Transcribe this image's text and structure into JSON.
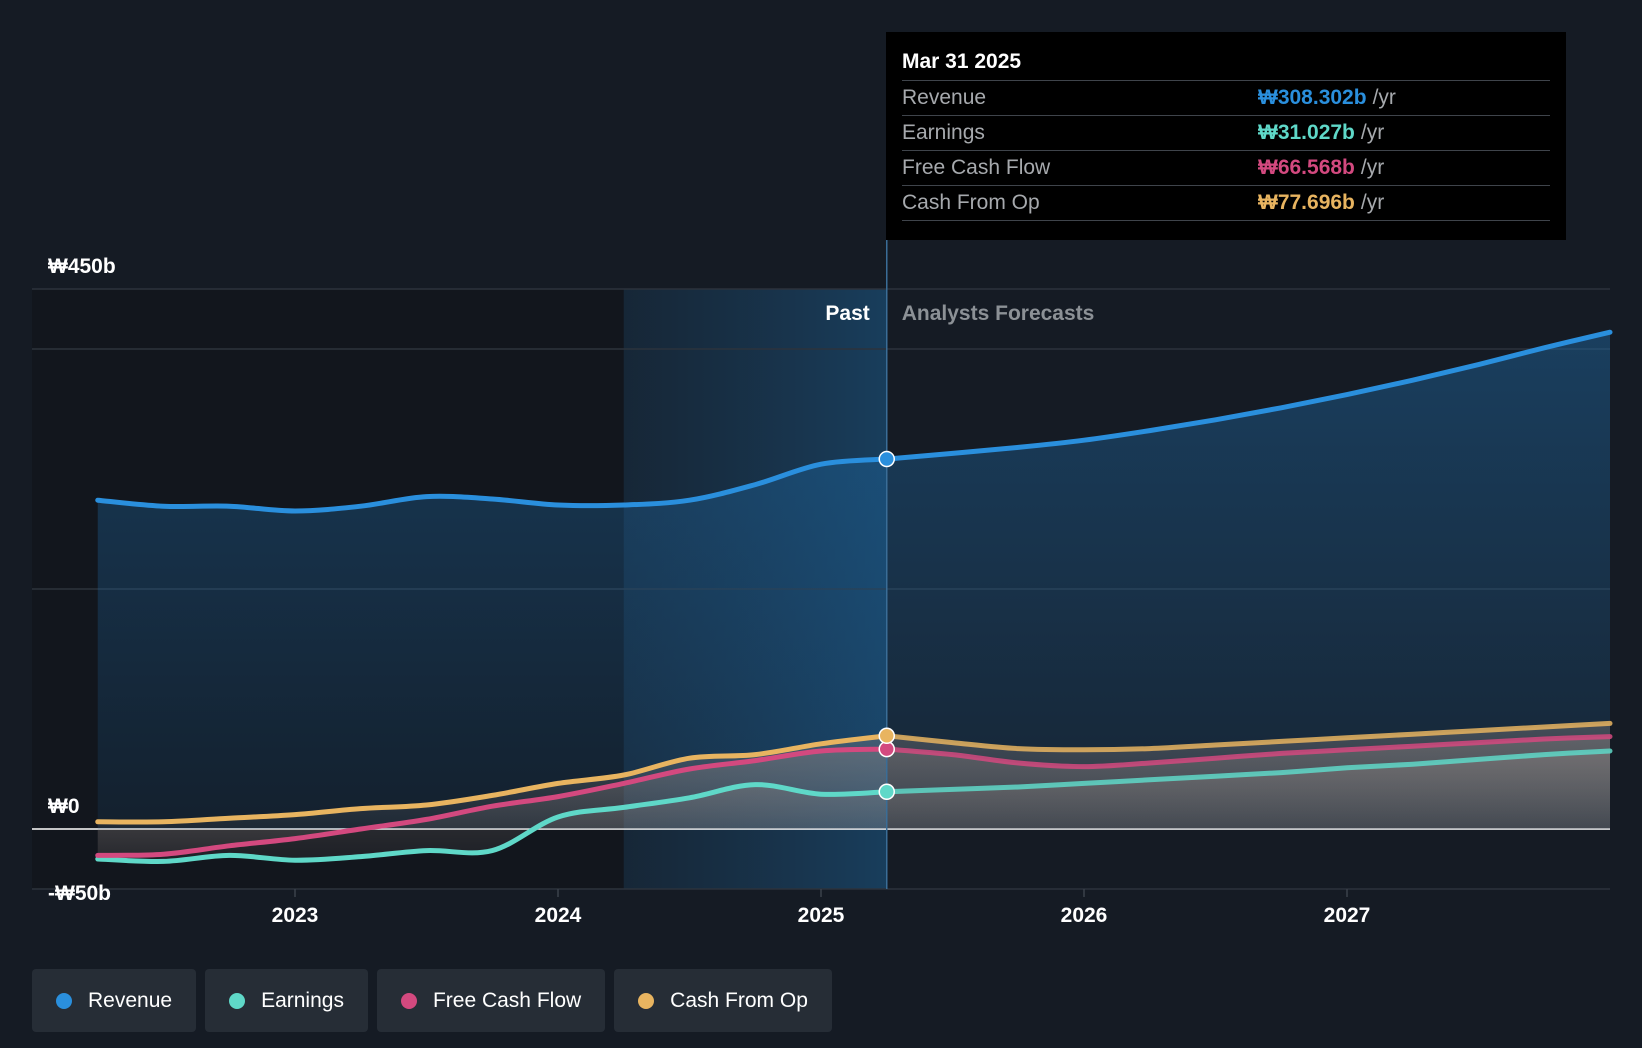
{
  "chart_data": {
    "type": "area",
    "currency": "₩",
    "y_axis_labels": [
      "₩450b",
      "₩0",
      "-₩50b"
    ],
    "ylim": [
      -50,
      450
    ],
    "x_ticks": [
      {
        "label": "2023",
        "x": 2023.0
      },
      {
        "label": "2024",
        "x": 2024.0
      },
      {
        "label": "2025",
        "x": 2025.0
      },
      {
        "label": "2026",
        "x": 2026.0
      },
      {
        "label": "2027",
        "x": 2027.0
      }
    ],
    "xlim": [
      2022.0,
      2028.0
    ],
    "past_label": "Past",
    "forecast_label": "Analysts Forecasts",
    "divider_x": 2025.25,
    "shade_start_x": 2024.25,
    "series": [
      {
        "name": "Revenue",
        "color": "#2a8fdd",
        "past": [
          [
            2022.25,
            274
          ],
          [
            2022.5,
            269
          ],
          [
            2022.75,
            269
          ],
          [
            2023.0,
            265
          ],
          [
            2023.25,
            269
          ],
          [
            2023.5,
            277
          ],
          [
            2023.75,
            275
          ],
          [
            2024.0,
            270
          ],
          [
            2024.25,
            270
          ],
          [
            2024.5,
            274
          ],
          [
            2024.75,
            287
          ],
          [
            2025.0,
            304
          ],
          [
            2025.25,
            308.302
          ]
        ],
        "forecast": [
          [
            2025.25,
            308.302
          ],
          [
            2025.5,
            313
          ],
          [
            2025.75,
            318
          ],
          [
            2026.0,
            324
          ],
          [
            2026.25,
            332
          ],
          [
            2026.5,
            341
          ],
          [
            2026.75,
            351
          ],
          [
            2027.0,
            362
          ],
          [
            2027.25,
            374
          ],
          [
            2027.5,
            387
          ],
          [
            2027.75,
            401
          ],
          [
            2028.0,
            414
          ]
        ]
      },
      {
        "name": "Earnings",
        "color": "#5fd8c8",
        "past": [
          [
            2022.25,
            -25
          ],
          [
            2022.5,
            -27
          ],
          [
            2022.75,
            -22
          ],
          [
            2023.0,
            -26
          ],
          [
            2023.25,
            -23
          ],
          [
            2023.5,
            -18
          ],
          [
            2023.75,
            -18
          ],
          [
            2024.0,
            10
          ],
          [
            2024.25,
            18
          ],
          [
            2024.5,
            26
          ],
          [
            2024.75,
            37
          ],
          [
            2025.0,
            29
          ],
          [
            2025.25,
            31.027
          ]
        ],
        "forecast": [
          [
            2025.25,
            31.027
          ],
          [
            2025.5,
            33
          ],
          [
            2025.75,
            35
          ],
          [
            2026.0,
            38
          ],
          [
            2026.25,
            41
          ],
          [
            2026.5,
            44
          ],
          [
            2026.75,
            47
          ],
          [
            2027.0,
            51
          ],
          [
            2027.25,
            54
          ],
          [
            2027.5,
            58
          ],
          [
            2027.75,
            62
          ],
          [
            2028.0,
            65
          ]
        ]
      },
      {
        "name": "Free Cash Flow",
        "color": "#d3497f",
        "past": [
          [
            2022.25,
            -22
          ],
          [
            2022.5,
            -21
          ],
          [
            2022.75,
            -14
          ],
          [
            2023.0,
            -8
          ],
          [
            2023.25,
            0
          ],
          [
            2023.5,
            8
          ],
          [
            2023.75,
            19
          ],
          [
            2024.0,
            27
          ],
          [
            2024.25,
            38
          ],
          [
            2024.5,
            50
          ],
          [
            2024.75,
            57
          ],
          [
            2025.0,
            65
          ],
          [
            2025.25,
            66.568
          ]
        ],
        "forecast": [
          [
            2025.25,
            66.568
          ],
          [
            2025.5,
            62
          ],
          [
            2025.75,
            55
          ],
          [
            2026.0,
            52
          ],
          [
            2026.25,
            55
          ],
          [
            2026.5,
            59
          ],
          [
            2026.75,
            63
          ],
          [
            2027.0,
            66
          ],
          [
            2027.25,
            69
          ],
          [
            2027.5,
            72
          ],
          [
            2027.75,
            75
          ],
          [
            2028.0,
            77
          ]
        ]
      },
      {
        "name": "Cash From Op",
        "color": "#e8b460",
        "past": [
          [
            2022.25,
            6
          ],
          [
            2022.5,
            6
          ],
          [
            2022.75,
            9
          ],
          [
            2023.0,
            12
          ],
          [
            2023.25,
            17
          ],
          [
            2023.5,
            20
          ],
          [
            2023.75,
            28
          ],
          [
            2024.0,
            38
          ],
          [
            2024.25,
            45
          ],
          [
            2024.5,
            59
          ],
          [
            2024.75,
            62
          ],
          [
            2025.0,
            71
          ],
          [
            2025.25,
            77.696
          ]
        ],
        "forecast": [
          [
            2025.25,
            77.696
          ],
          [
            2025.5,
            72
          ],
          [
            2025.75,
            67
          ],
          [
            2026.0,
            66
          ],
          [
            2026.25,
            67
          ],
          [
            2026.5,
            70
          ],
          [
            2026.75,
            73
          ],
          [
            2027.0,
            76
          ],
          [
            2027.25,
            79
          ],
          [
            2027.5,
            82
          ],
          [
            2027.75,
            85
          ],
          [
            2028.0,
            88
          ]
        ]
      }
    ]
  },
  "tooltip": {
    "date": "Mar 31 2025",
    "rows": [
      {
        "label": "Revenue",
        "value": "₩308.302b",
        "unit": "/yr",
        "color": "#2a8fdd"
      },
      {
        "label": "Earnings",
        "value": "₩31.027b",
        "unit": "/yr",
        "color": "#5fd8c8"
      },
      {
        "label": "Free Cash Flow",
        "value": "₩66.568b",
        "unit": "/yr",
        "color": "#d3497f"
      },
      {
        "label": "Cash From Op",
        "value": "₩77.696b",
        "unit": "/yr",
        "color": "#e8b460"
      }
    ]
  },
  "legend": [
    {
      "label": "Revenue",
      "color": "#2a8fdd"
    },
    {
      "label": "Earnings",
      "color": "#5fd8c8"
    },
    {
      "label": "Free Cash Flow",
      "color": "#d3497f"
    },
    {
      "label": "Cash From Op",
      "color": "#e8b460"
    }
  ]
}
